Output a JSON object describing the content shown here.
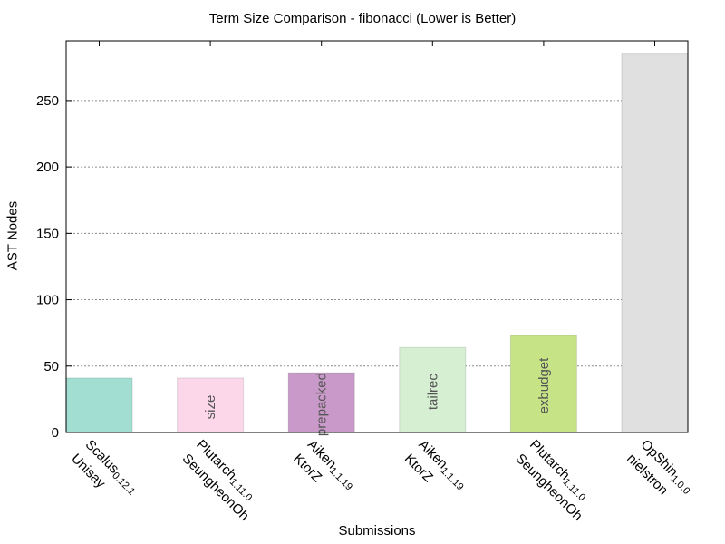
{
  "chart_data": {
    "type": "bar",
    "title": "Term Size Comparison - fibonacci (Lower is Better)",
    "xlabel": "Submissions",
    "ylabel": "AST Nodes",
    "ylim": [
      0,
      295
    ],
    "yticks": [
      0,
      50,
      100,
      150,
      200,
      250
    ],
    "grid": "horizontal dotted",
    "bars": [
      {
        "line1": "Scalus",
        "version": "0.12.1",
        "line2": "Unisay",
        "inner_label": "",
        "value": 41,
        "color": "#a3ded3"
      },
      {
        "line1": "Plutarch",
        "version": "1.11.0",
        "line2": "SeungheonOh",
        "inner_label": "size",
        "value": 41,
        "color": "#fcd7e9"
      },
      {
        "line1": "Aiken",
        "version": "1.1.19",
        "line2": "KtorZ",
        "inner_label": "prepacked",
        "value": 45,
        "color": "#c99ac9"
      },
      {
        "line1": "Aiken",
        "version": "1.1.19",
        "line2": "KtorZ",
        "inner_label": "tailrec",
        "value": 64,
        "color": "#d6efd2"
      },
      {
        "line1": "Plutarch",
        "version": "1.11.0",
        "line2": "SeungheonOh",
        "inner_label": "exbudget",
        "value": 73,
        "color": "#c6e486"
      },
      {
        "line1": "OpShin",
        "version": "1.0.0",
        "line2": "nielstron",
        "inner_label": "",
        "value": 285,
        "color": "#e0e0e0"
      }
    ]
  }
}
